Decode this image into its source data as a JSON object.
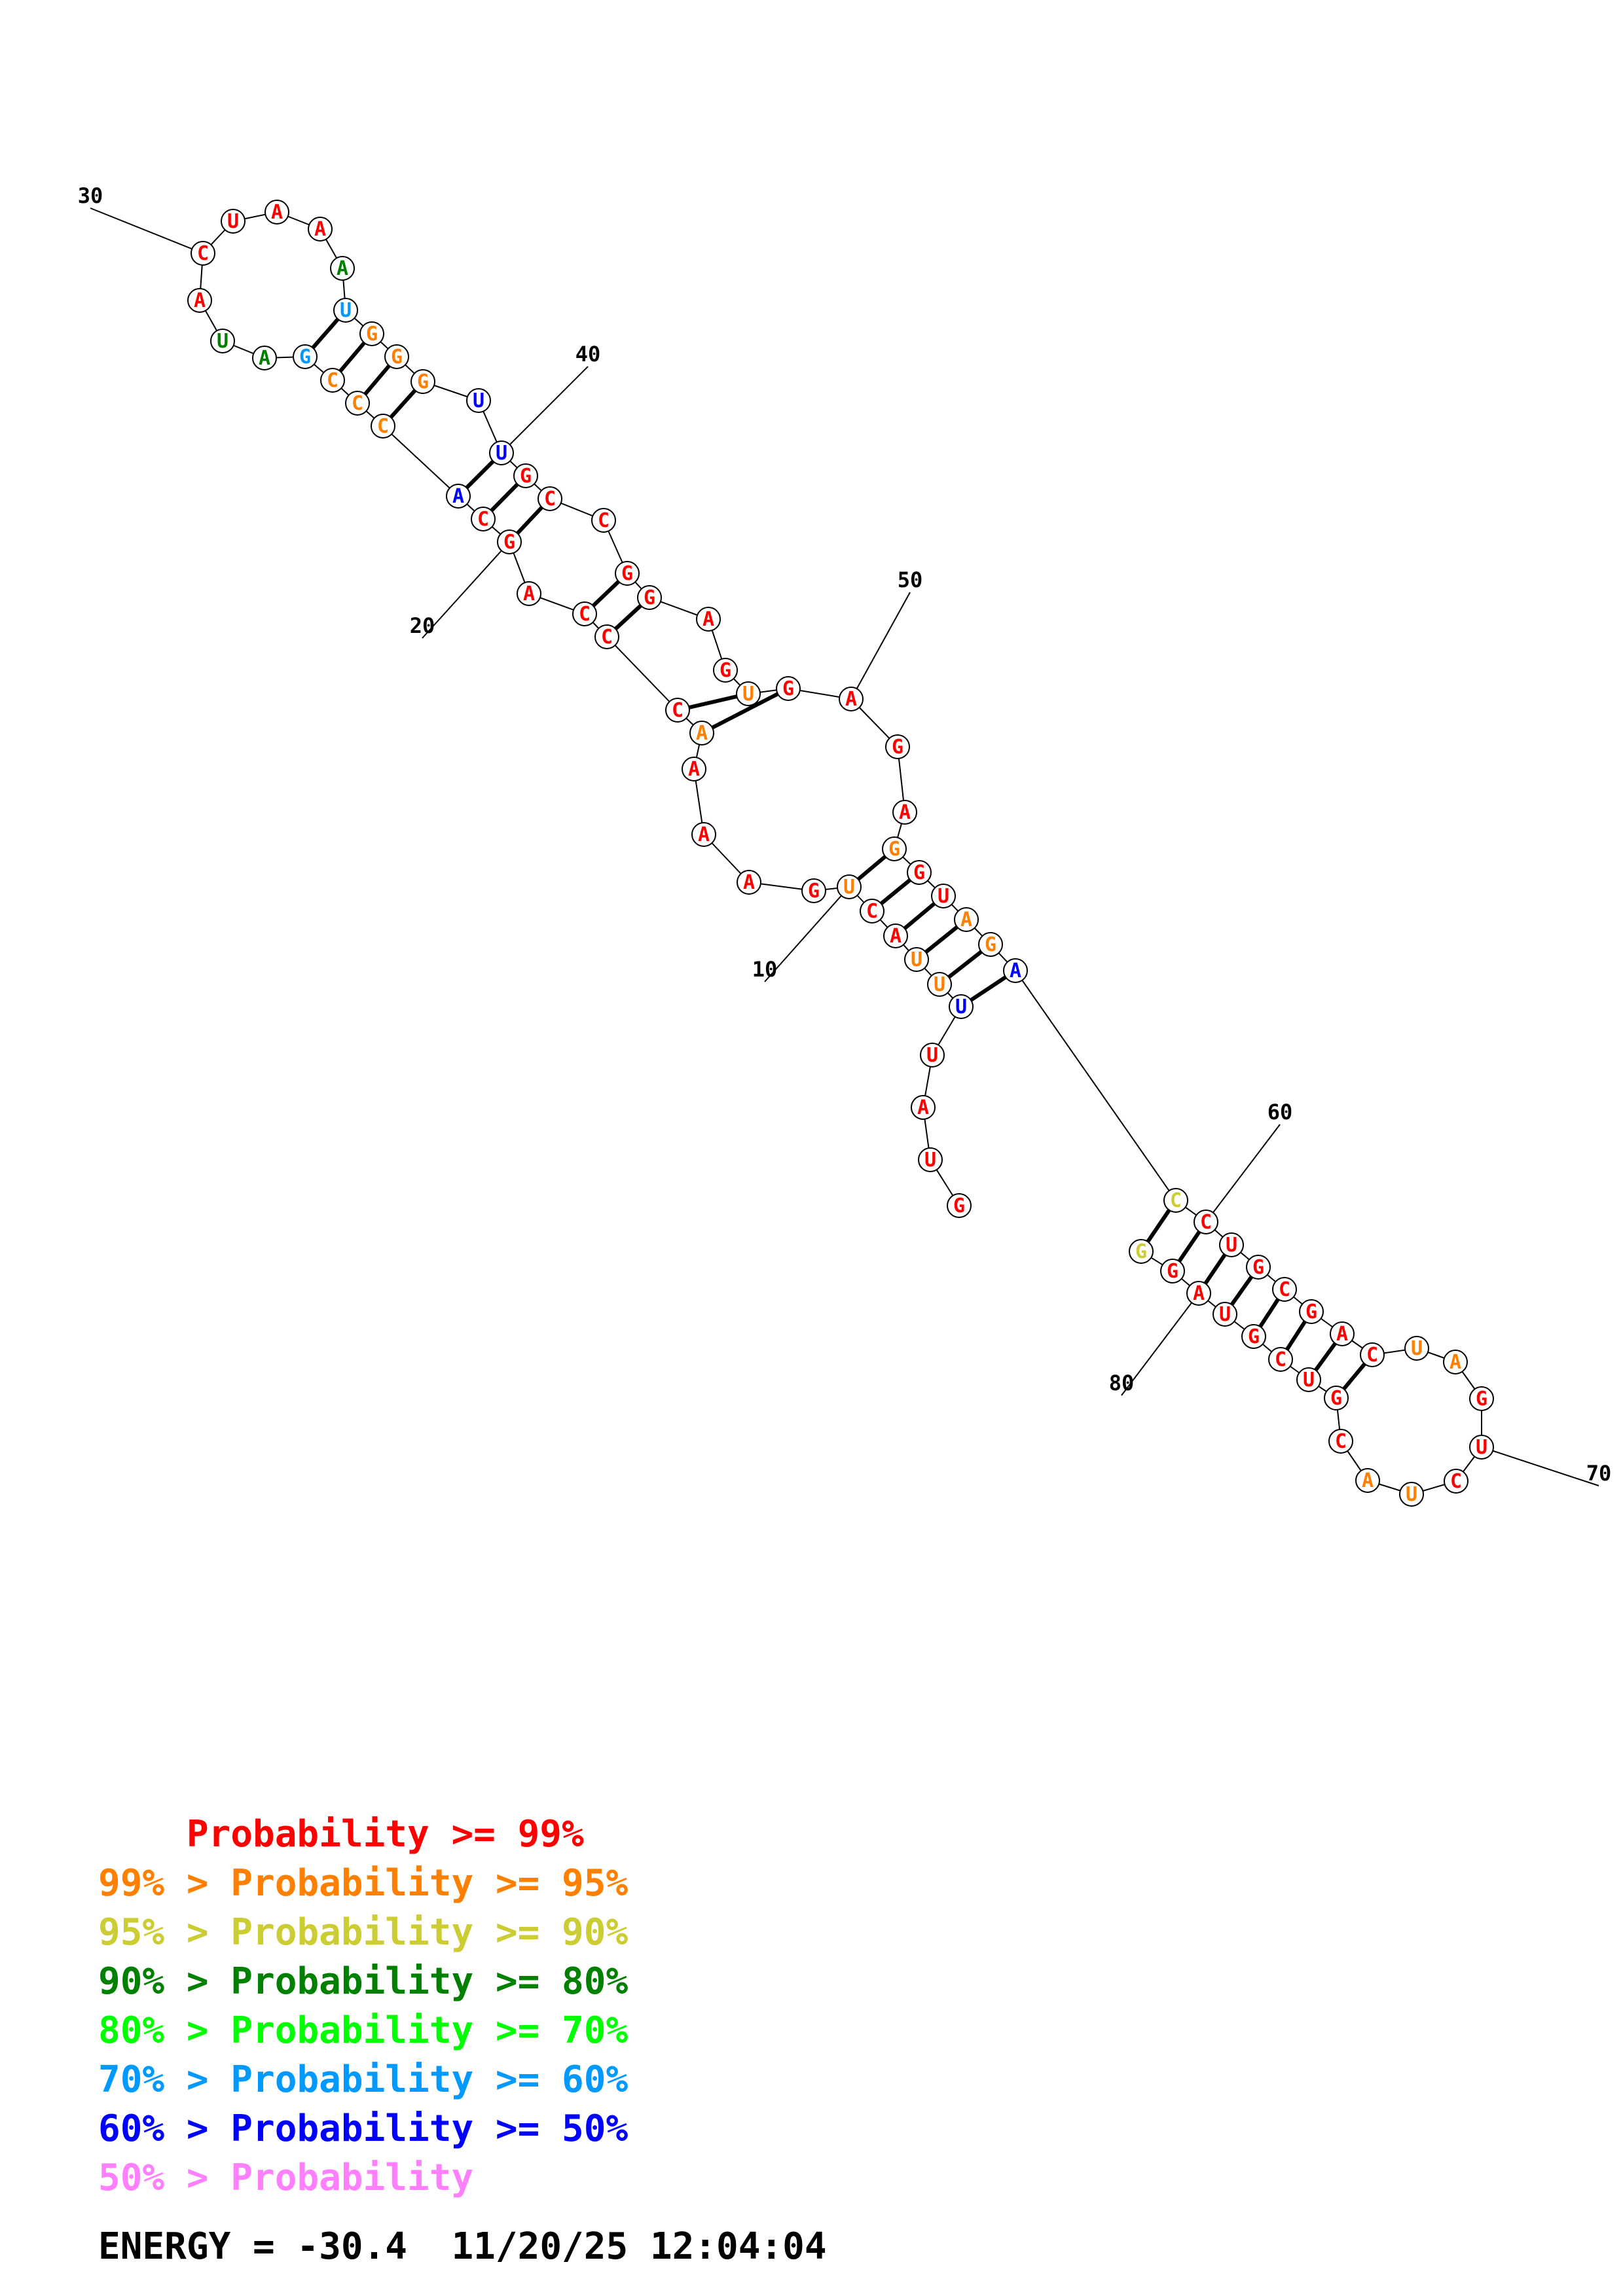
{
  "structure": {
    "nucleotides": [
      {
        "n": 1,
        "b": "G",
        "c": "red"
      },
      {
        "n": 2,
        "b": "U",
        "c": "red"
      },
      {
        "n": 3,
        "b": "A",
        "c": "red"
      },
      {
        "n": 4,
        "b": "U",
        "c": "red"
      },
      {
        "n": 5,
        "b": "U",
        "c": "blue"
      },
      {
        "n": 6,
        "b": "U",
        "c": "orange"
      },
      {
        "n": 7,
        "b": "U",
        "c": "orange"
      },
      {
        "n": 8,
        "b": "A",
        "c": "red"
      },
      {
        "n": 9,
        "b": "C",
        "c": "red"
      },
      {
        "n": 10,
        "b": "U",
        "c": "orange"
      },
      {
        "n": 11,
        "b": "G",
        "c": "red"
      },
      {
        "n": 12,
        "b": "A",
        "c": "red"
      },
      {
        "n": 13,
        "b": "A",
        "c": "red"
      },
      {
        "n": 14,
        "b": "A",
        "c": "red"
      },
      {
        "n": 15,
        "b": "A",
        "c": "orange"
      },
      {
        "n": 16,
        "b": "C",
        "c": "red"
      },
      {
        "n": 17,
        "b": "C",
        "c": "red"
      },
      {
        "n": 18,
        "b": "C",
        "c": "red"
      },
      {
        "n": 19,
        "b": "A",
        "c": "red"
      },
      {
        "n": 20,
        "b": "G",
        "c": "red"
      },
      {
        "n": 21,
        "b": "C",
        "c": "red"
      },
      {
        "n": 22,
        "b": "A",
        "c": "blue"
      },
      {
        "n": 23,
        "b": "C",
        "c": "orange"
      },
      {
        "n": 24,
        "b": "C",
        "c": "orange"
      },
      {
        "n": 25,
        "b": "C",
        "c": "orange"
      },
      {
        "n": 26,
        "b": "G",
        "c": "skyblue"
      },
      {
        "n": 27,
        "b": "A",
        "c": "green"
      },
      {
        "n": 28,
        "b": "U",
        "c": "green"
      },
      {
        "n": 29,
        "b": "A",
        "c": "red"
      },
      {
        "n": 30,
        "b": "C",
        "c": "red"
      },
      {
        "n": 31,
        "b": "U",
        "c": "red"
      },
      {
        "n": 32,
        "b": "A",
        "c": "red"
      },
      {
        "n": 33,
        "b": "A",
        "c": "red"
      },
      {
        "n": 34,
        "b": "A",
        "c": "green"
      },
      {
        "n": 35,
        "b": "U",
        "c": "skyblue"
      },
      {
        "n": 36,
        "b": "G",
        "c": "orange"
      },
      {
        "n": 37,
        "b": "G",
        "c": "orange"
      },
      {
        "n": 38,
        "b": "G",
        "c": "orange"
      },
      {
        "n": 39,
        "b": "U",
        "c": "blue"
      },
      {
        "n": 40,
        "b": "U",
        "c": "blue"
      },
      {
        "n": 41,
        "b": "G",
        "c": "red"
      },
      {
        "n": 42,
        "b": "C",
        "c": "red"
      },
      {
        "n": 43,
        "b": "C",
        "c": "red"
      },
      {
        "n": 44,
        "b": "G",
        "c": "red"
      },
      {
        "n": 45,
        "b": "G",
        "c": "red"
      },
      {
        "n": 46,
        "b": "A",
        "c": "red"
      },
      {
        "n": 47,
        "b": "G",
        "c": "red"
      },
      {
        "n": 48,
        "b": "U",
        "c": "orange"
      },
      {
        "n": 49,
        "b": "G",
        "c": "red"
      },
      {
        "n": 50,
        "b": "A",
        "c": "red"
      },
      {
        "n": 51,
        "b": "G",
        "c": "red"
      },
      {
        "n": 52,
        "b": "A",
        "c": "red"
      },
      {
        "n": 53,
        "b": "G",
        "c": "orange"
      },
      {
        "n": 54,
        "b": "G",
        "c": "red"
      },
      {
        "n": 55,
        "b": "U",
        "c": "red"
      },
      {
        "n": 56,
        "b": "A",
        "c": "orange"
      },
      {
        "n": 57,
        "b": "G",
        "c": "orange"
      },
      {
        "n": 58,
        "b": "A",
        "c": "blue"
      },
      {
        "n": 59,
        "b": "C",
        "c": "yellow"
      },
      {
        "n": 60,
        "b": "C",
        "c": "red"
      },
      {
        "n": 61,
        "b": "U",
        "c": "red"
      },
      {
        "n": 62,
        "b": "G",
        "c": "red"
      },
      {
        "n": 63,
        "b": "C",
        "c": "red"
      },
      {
        "n": 64,
        "b": "G",
        "c": "red"
      },
      {
        "n": 65,
        "b": "A",
        "c": "red"
      },
      {
        "n": 66,
        "b": "C",
        "c": "red"
      },
      {
        "n": 67,
        "b": "U",
        "c": "orange"
      },
      {
        "n": 68,
        "b": "A",
        "c": "orange"
      },
      {
        "n": 69,
        "b": "G",
        "c": "red"
      },
      {
        "n": 70,
        "b": "U",
        "c": "red"
      },
      {
        "n": 71,
        "b": "C",
        "c": "red"
      },
      {
        "n": 72,
        "b": "U",
        "c": "orange"
      },
      {
        "n": 73,
        "b": "A",
        "c": "orange"
      },
      {
        "n": 74,
        "b": "C",
        "c": "red"
      },
      {
        "n": 75,
        "b": "G",
        "c": "red"
      },
      {
        "n": 76,
        "b": "U",
        "c": "red"
      },
      {
        "n": 77,
        "b": "C",
        "c": "red"
      },
      {
        "n": 78,
        "b": "G",
        "c": "red"
      },
      {
        "n": 79,
        "b": "U",
        "c": "red"
      },
      {
        "n": 80,
        "b": "A",
        "c": "red"
      },
      {
        "n": 81,
        "b": "G",
        "c": "red"
      },
      {
        "n": 82,
        "b": "G",
        "c": "yellow"
      }
    ],
    "pairs": [
      [
        5,
        58
      ],
      [
        6,
        57
      ],
      [
        7,
        56
      ],
      [
        8,
        55
      ],
      [
        9,
        54
      ],
      [
        10,
        53
      ],
      [
        15,
        49
      ],
      [
        16,
        48
      ],
      [
        17,
        45
      ],
      [
        18,
        44
      ],
      [
        20,
        42
      ],
      [
        21,
        41
      ],
      [
        22,
        40
      ],
      [
        23,
        38
      ],
      [
        24,
        37
      ],
      [
        25,
        36
      ],
      [
        26,
        35
      ],
      [
        59,
        82
      ],
      [
        60,
        81
      ],
      [
        61,
        80
      ],
      [
        62,
        79
      ],
      [
        63,
        78
      ],
      [
        64,
        77
      ],
      [
        65,
        76
      ],
      [
        66,
        75
      ]
    ],
    "index_labels": [
      {
        "n": 10,
        "text": "10"
      },
      {
        "n": 20,
        "text": "20"
      },
      {
        "n": 30,
        "text": "30"
      },
      {
        "n": 40,
        "text": "40"
      },
      {
        "n": 50,
        "text": "50"
      },
      {
        "n": 60,
        "text": "60"
      },
      {
        "n": 70,
        "text": "70"
      },
      {
        "n": 80,
        "text": "80"
      }
    ]
  },
  "colors": {
    "red": "#ff0000",
    "orange": "#ff8000",
    "yellow": "#cccc33",
    "green": "#008000",
    "lime": "#00ff00",
    "skyblue": "#0099ff",
    "blue": "#0000ff",
    "pink": "#ff80ff",
    "black": "#000000"
  },
  "legend": [
    {
      "prefix": "    ",
      "text": "Probability >= 99%",
      "color": "red"
    },
    {
      "prefix": "99% > ",
      "text": "Probability >= 95%",
      "color": "orange"
    },
    {
      "prefix": "95% > ",
      "text": "Probability >= 90%",
      "color": "yellow"
    },
    {
      "prefix": "90% > ",
      "text": "Probability >= 80%",
      "color": "green"
    },
    {
      "prefix": "80% > ",
      "text": "Probability >= 70%",
      "color": "lime"
    },
    {
      "prefix": "70% > ",
      "text": "Probability >= 60%",
      "color": "skyblue"
    },
    {
      "prefix": "60% > ",
      "text": "Probability >= 50%",
      "color": "blue"
    },
    {
      "prefix": "50% > ",
      "text": "Probability",
      "color": "pink"
    }
  ],
  "energy": {
    "label": "ENERGY = -30.4",
    "timestamp": "11/20/25 12:04:04"
  }
}
